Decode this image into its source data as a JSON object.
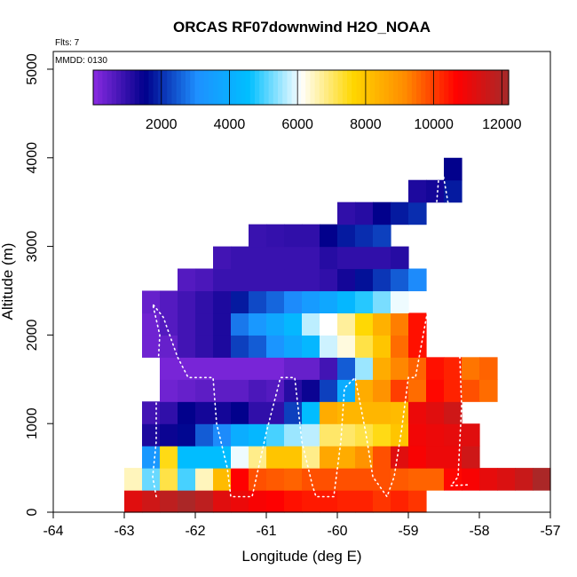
{
  "chart_data": {
    "type": "heatmap",
    "title": "ORCAS RF07downwind H2O_NOAA",
    "subtitle_flights": "Flts: 7",
    "subtitle_date": "MMDD: 0130",
    "xlabel": "Longitude (deg E)",
    "ylabel": "Altitude (m)",
    "xlim": [
      -64,
      -57
    ],
    "ylim": [
      0,
      5200
    ],
    "xticks": [
      -64,
      -63,
      -62,
      -61,
      -60,
      -59,
      -58,
      -57
    ],
    "yticks": [
      0,
      1000,
      2000,
      3000,
      4000,
      5000
    ],
    "colorbar": {
      "range": [
        0,
        12200
      ],
      "ticks": [
        2000,
        4000,
        6000,
        8000,
        10000,
        12000
      ],
      "colors": [
        "#8a2be2",
        "#00008b",
        "#1e90ff",
        "#00bfff",
        "#ffffff",
        "#ffd700",
        "#ff8c00",
        "#ff0000",
        "#a52a2a"
      ]
    },
    "cell_size": {
      "lon": 0.25,
      "alt": 250
    },
    "rows": [
      {
        "alt": 0,
        "lon_start": -63.0,
        "values": [
          11200,
          11500,
          11800,
          12100,
          11800,
          11200,
          11000,
          10800,
          10700,
          10500,
          10400,
          10400,
          10300,
          10300,
          10100,
          10300,
          10100
        ]
      },
      {
        "alt": 250,
        "lon_start": -63.0,
        "values": [
          6500,
          5200,
          7200,
          5000,
          6500,
          8200,
          10700,
          9800,
          9700,
          9600,
          9800,
          9800,
          9800,
          9800,
          9800,
          9700,
          9600,
          9600,
          10600,
          10800,
          11100,
          11300,
          11600,
          12100
        ]
      },
      {
        "alt": 500,
        "lon_start": -62.75,
        "values": [
          3300,
          7500,
          4500,
          4500,
          4500,
          6000,
          6800,
          8000,
          8000,
          6800,
          8600,
          8500,
          9000,
          9800,
          11200,
          10800,
          11000,
          11000,
          11500
        ]
      },
      {
        "alt": 750,
        "lon_start": -62.75,
        "values": [
          1200,
          1400,
          1600,
          2500,
          3000,
          4000,
          4300,
          5000,
          5500,
          5700,
          7000,
          7000,
          7200,
          7500,
          8000,
          10900,
          11000,
          11100,
          11200
        ]
      },
      {
        "alt": 1000,
        "lon_start": -62.75,
        "values": [
          800,
          1000,
          1500,
          1300,
          1300,
          1500,
          1000,
          1000,
          2200,
          4500,
          8500,
          8300,
          8300,
          8300,
          8200,
          11000,
          11200,
          11500
        ]
      },
      {
        "alt": 1250,
        "lon_start": -62.5,
        "values": [
          300,
          400,
          500,
          500,
          500,
          700,
          600,
          1100,
          1400,
          2200,
          4000,
          8500,
          9000,
          10000,
          9500,
          10600,
          10300,
          9800,
          9500
        ]
      },
      {
        "alt": 1500,
        "lon_start": -62.5,
        "values": [
          200,
          200,
          200,
          200,
          200,
          200,
          200,
          400,
          400,
          800,
          2500,
          5500,
          8500,
          9200,
          9600,
          10500,
          10300,
          9400,
          9600
        ]
      },
      {
        "alt": 1750,
        "lon_start": -62.75,
        "values": [
          300,
          400,
          800,
          1000,
          1200,
          2200,
          2500,
          3200,
          3800,
          4300,
          5800,
          6300,
          7200,
          8000,
          9500,
          10500
        ]
      },
      {
        "alt": 2000,
        "lon_start": -62.75,
        "values": [
          300,
          600,
          800,
          1000,
          1200,
          2800,
          3300,
          3800,
          4300,
          5700,
          6100,
          6700,
          7600,
          8400,
          9300,
          10500
        ]
      },
      {
        "alt": 2250,
        "lon_start": -62.75,
        "values": [
          400,
          600,
          800,
          1000,
          1200,
          1800,
          2300,
          2600,
          3000,
          3400,
          3800,
          4300,
          4800,
          5300,
          6000
        ]
      },
      {
        "alt": 2500,
        "lon_start": -62.25,
        "values": [
          600,
          700,
          900,
          900,
          900,
          900,
          900,
          900,
          1000,
          1300,
          1700,
          2100,
          2500,
          3000
        ]
      },
      {
        "alt": 2750,
        "lon_start": -61.75,
        "values": [
          800,
          900,
          900,
          900,
          900,
          900,
          1100,
          1000,
          1000,
          1000,
          1100
        ]
      },
      {
        "alt": 3000,
        "lon_start": -61.25,
        "values": [
          900,
          950,
          1000,
          1000,
          1500,
          1800,
          2000,
          2200
        ]
      },
      {
        "alt": 3250,
        "lon_start": -60.0,
        "values": [
          1000,
          1100,
          1500,
          1800,
          2000
        ]
      },
      {
        "alt": 3500,
        "lon_start": -59.0,
        "values": [
          1200,
          1300,
          1800
        ]
      },
      {
        "alt": 3750,
        "lon_start": -58.5,
        "values": [
          1500
        ]
      }
    ],
    "flight_track": [
      [
        -62.55,
        175
      ],
      [
        -62.6,
        400
      ],
      [
        -62.55,
        800
      ],
      [
        -62.55,
        1300
      ],
      [
        -62.5,
        2000
      ],
      [
        -62.6,
        2350
      ],
      [
        -62.45,
        2200
      ],
      [
        -62.25,
        1750
      ],
      [
        -62.1,
        1520
      ],
      [
        -61.75,
        1520
      ],
      [
        -61.7,
        1000
      ],
      [
        -61.55,
        500
      ],
      [
        -61.5,
        175
      ],
      [
        -61.2,
        175
      ],
      [
        -61.0,
        900
      ],
      [
        -60.8,
        1520
      ],
      [
        -60.6,
        1520
      ],
      [
        -60.5,
        800
      ],
      [
        -60.35,
        300
      ],
      [
        -60.3,
        175
      ],
      [
        -60.05,
        175
      ],
      [
        -59.95,
        800
      ],
      [
        -59.9,
        1400
      ],
      [
        -59.75,
        1520
      ],
      [
        -59.6,
        900
      ],
      [
        -59.5,
        400
      ],
      [
        -59.3,
        175
      ],
      [
        -59.2,
        400
      ],
      [
        -59.1,
        900
      ],
      [
        -59.0,
        1520
      ],
      [
        -58.9,
        1520
      ],
      [
        -58.7,
        2400
      ],
      [
        -58.6,
        3500
      ],
      [
        -58.55,
        4000
      ],
      [
        -58.4,
        3300
      ],
      [
        -58.3,
        2300
      ],
      [
        -58.25,
        1200
      ],
      [
        -58.3,
        400
      ],
      [
        -58.4,
        300
      ],
      [
        -58.15,
        310
      ]
    ]
  }
}
